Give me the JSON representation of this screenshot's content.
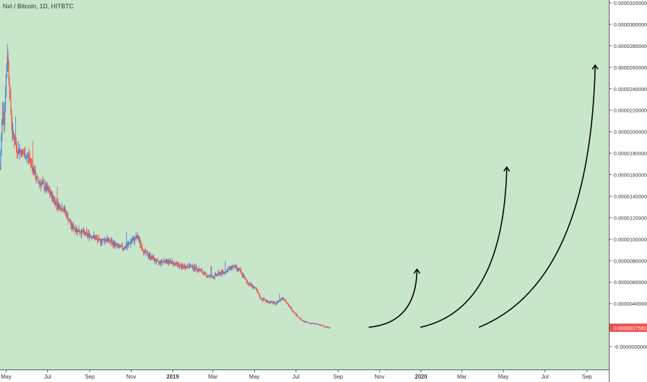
{
  "chart_data": {
    "type": "candlestick",
    "title": "Nxt / Bitcoin, 1D, HITBTC",
    "background": "#c8e6c9",
    "up_color": "#3a7bd5",
    "down_color": "#ef5350",
    "last_price": "0.0000017591",
    "last_price_color": "#ef5350",
    "y_range": [
      -2e-06,
      3.2e-05
    ],
    "y_ticks": [
      "0.0000320000",
      "0.0000300000",
      "0.0000280000",
      "0.0000260000",
      "0.0000240000",
      "0.0000220000",
      "0.0000200000",
      "0.0000180000",
      "0.0000160000",
      "0.0000140000",
      "0.0000120000",
      "0.0000100000",
      "0.0000080000",
      "0.0000060000",
      "0.0000040000",
      "-0.0000000000"
    ],
    "x_range": [
      "2018-04-22",
      "2020-10-03"
    ],
    "x_ticks": [
      {
        "label": "May",
        "date": "2018-05-01",
        "bold": false
      },
      {
        "label": "Jul",
        "date": "2018-07-01",
        "bold": false
      },
      {
        "label": "Sep",
        "date": "2018-09-01",
        "bold": false
      },
      {
        "label": "Nov",
        "date": "2018-11-01",
        "bold": false
      },
      {
        "label": "2019",
        "date": "2019-01-01",
        "bold": true
      },
      {
        "label": "Mar",
        "date": "2019-03-01",
        "bold": false
      },
      {
        "label": "May",
        "date": "2019-05-01",
        "bold": false
      },
      {
        "label": "Jul",
        "date": "2019-07-01",
        "bold": false
      },
      {
        "label": "Sep",
        "date": "2019-09-01",
        "bold": false
      },
      {
        "label": "Nov",
        "date": "2019-11-01",
        "bold": false
      },
      {
        "label": "2020",
        "date": "2020-01-01",
        "bold": true
      },
      {
        "label": "Mar",
        "date": "2020-03-01",
        "bold": false
      },
      {
        "label": "May",
        "date": "2020-05-01",
        "bold": false
      },
      {
        "label": "Jul",
        "date": "2020-07-01",
        "bold": false
      },
      {
        "label": "Sep",
        "date": "2020-09-01",
        "bold": false
      }
    ],
    "price_path": [
      [
        "2018-04-22",
        1.65e-05
      ],
      [
        "2018-04-26",
        2.25e-05
      ],
      [
        "2018-04-28",
        2.1e-05
      ],
      [
        "2018-05-01",
        2.5e-05
      ],
      [
        "2018-05-03",
        2.75e-05
      ],
      [
        "2018-05-06",
        2.4e-05
      ],
      [
        "2018-05-10",
        2e-05
      ],
      [
        "2018-05-16",
        1.85e-05
      ],
      [
        "2018-05-25",
        1.8e-05
      ],
      [
        "2018-06-05",
        1.75e-05
      ],
      [
        "2018-06-15",
        1.55e-05
      ],
      [
        "2018-06-25",
        1.5e-05
      ],
      [
        "2018-07-05",
        1.42e-05
      ],
      [
        "2018-07-15",
        1.32e-05
      ],
      [
        "2018-07-25",
        1.28e-05
      ],
      [
        "2018-08-05",
        1.12e-05
      ],
      [
        "2018-08-15",
        1.08e-05
      ],
      [
        "2018-08-25",
        1.05e-05
      ],
      [
        "2018-09-05",
        1.03e-05
      ],
      [
        "2018-09-15",
        9.8e-06
      ],
      [
        "2018-09-25",
        1e-05
      ],
      [
        "2018-10-05",
        9.6e-06
      ],
      [
        "2018-10-15",
        9.2e-06
      ],
      [
        "2018-10-25",
        9.3e-06
      ],
      [
        "2018-11-01",
        9.8e-06
      ],
      [
        "2018-11-10",
        1.02e-05
      ],
      [
        "2018-11-20",
        8.8e-06
      ],
      [
        "2018-12-01",
        8.3e-06
      ],
      [
        "2018-12-10",
        7.8e-06
      ],
      [
        "2018-12-20",
        8e-06
      ],
      [
        "2019-01-01",
        7.8e-06
      ],
      [
        "2019-01-15",
        7.4e-06
      ],
      [
        "2019-01-25",
        7.5e-06
      ],
      [
        "2019-02-05",
        7.3e-06
      ],
      [
        "2019-02-20",
        6.6e-06
      ],
      [
        "2019-03-01",
        6.5e-06
      ],
      [
        "2019-03-10",
        6.8e-06
      ],
      [
        "2019-03-20",
        7e-06
      ],
      [
        "2019-03-31",
        7.5e-06
      ],
      [
        "2019-04-10",
        7e-06
      ],
      [
        "2019-04-20",
        6e-06
      ],
      [
        "2019-05-01",
        5.5e-06
      ],
      [
        "2019-05-10",
        4.5e-06
      ],
      [
        "2019-05-20",
        4.2e-06
      ],
      [
        "2019-06-01",
        4e-06
      ],
      [
        "2019-06-12",
        4.6e-06
      ],
      [
        "2019-06-20",
        3.8e-06
      ],
      [
        "2019-07-01",
        3e-06
      ],
      [
        "2019-07-10",
        2.4e-06
      ],
      [
        "2019-07-20",
        2.2e-06
      ],
      [
        "2019-08-01",
        2.1e-06
      ],
      [
        "2019-08-10",
        1.9e-06
      ],
      [
        "2019-08-20",
        1.7591e-06
      ]
    ],
    "projection_arrows": [
      {
        "from": [
          "2019-10-16",
          1.8e-06
        ],
        "control": [
          "2019-12-25",
          2.2e-06
        ],
        "to": [
          "2019-12-26",
          7.2e-06
        ]
      },
      {
        "from": [
          "2019-12-31",
          1.8e-06
        ],
        "control": [
          "2020-05-01",
          3.5e-06
        ],
        "to": [
          "2020-05-06",
          1.67e-05
        ]
      },
      {
        "from": [
          "2020-03-26",
          1.8e-06
        ],
        "control": [
          "2020-09-05",
          6e-06
        ],
        "to": [
          "2020-09-13",
          2.62e-05
        ]
      }
    ]
  }
}
